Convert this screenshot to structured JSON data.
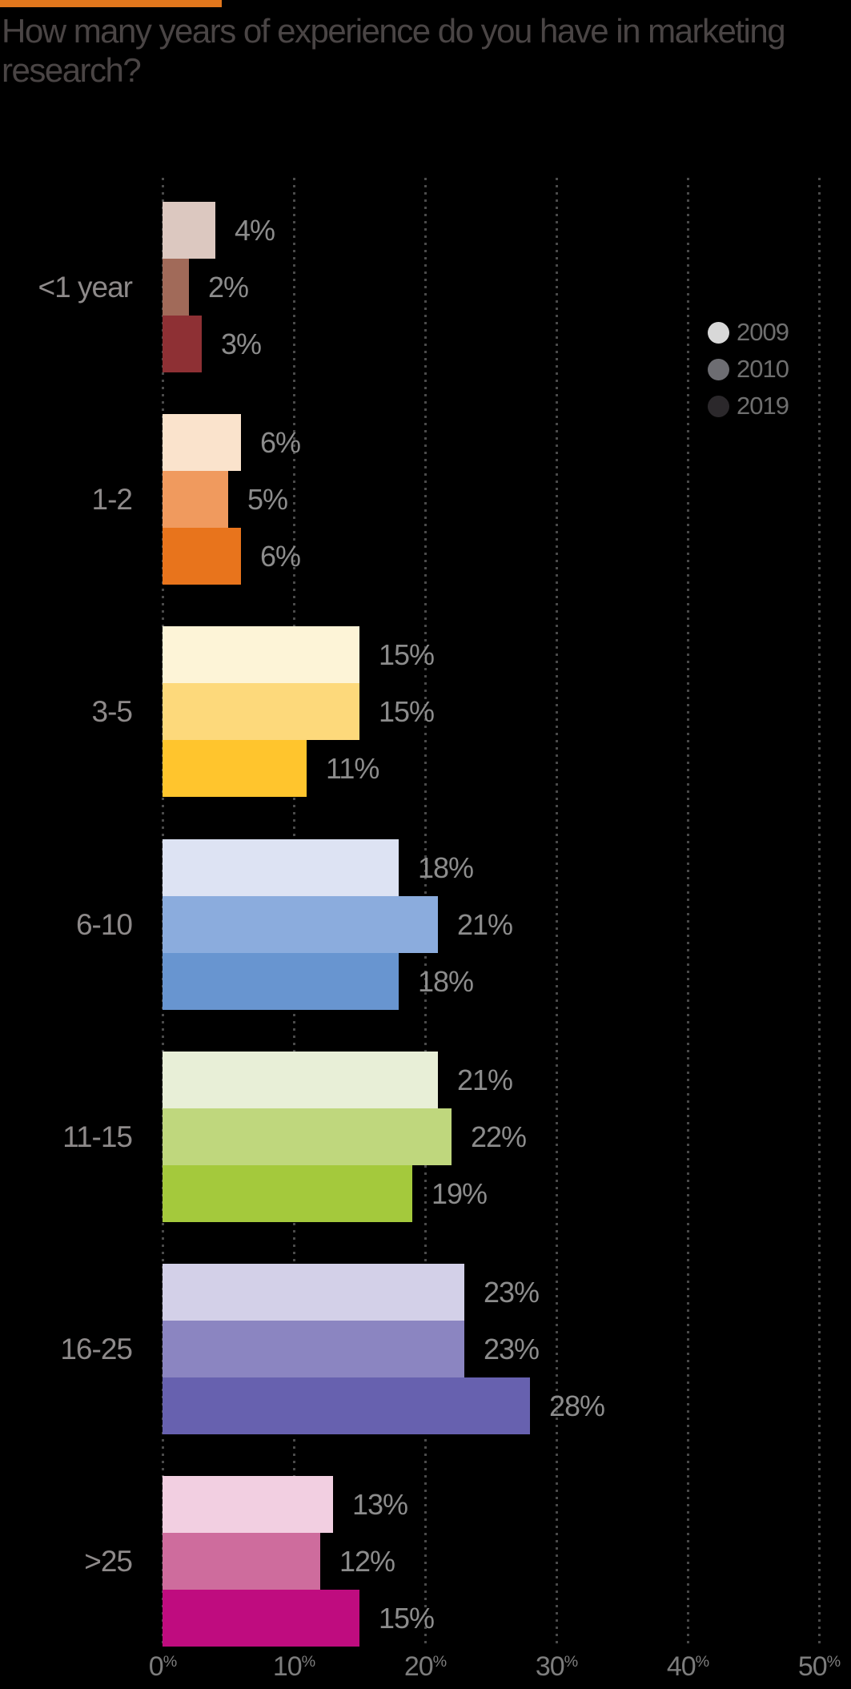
{
  "header": {
    "accent_color": "#e2771d",
    "title_line1": "How many years of experience do you have in marketing",
    "title_line2": "research?"
  },
  "legend": {
    "position": "right-top",
    "items": [
      {
        "label": "2009",
        "color": "#d8d8d8"
      },
      {
        "label": "2010",
        "color": "#6d6d72"
      },
      {
        "label": "2019",
        "color": "#2b282b"
      }
    ]
  },
  "chart_data": {
    "type": "bar",
    "orientation": "horizontal",
    "title": "How many years of experience do you have in marketing research?",
    "xlabel": "",
    "ylabel": "",
    "xlim": [
      0,
      50
    ],
    "grid": "dotted-vertical",
    "x_tick_labels": [
      "0%",
      "10%",
      "20%",
      "30%",
      "40%",
      "50%"
    ],
    "x_tick_values": [
      0,
      10,
      20,
      30,
      40,
      50
    ],
    "series_names": [
      "2009",
      "2010",
      "2019"
    ],
    "categories": [
      "<1 year",
      "1-2",
      "3-5",
      "6-10",
      "11-15",
      "16-25",
      ">25"
    ],
    "groups": [
      {
        "category": "<1 year",
        "values": [
          4,
          2,
          3
        ],
        "labels": [
          "4%",
          "2%",
          "3%"
        ],
        "colors": [
          "#dcc8c0",
          "#a16a59",
          "#8e3034"
        ]
      },
      {
        "category": "1-2",
        "values": [
          6,
          5,
          6
        ],
        "labels": [
          "6%",
          "5%",
          "6%"
        ],
        "colors": [
          "#fae3cc",
          "#f09a5e",
          "#e8741c"
        ]
      },
      {
        "category": "3-5",
        "values": [
          15,
          15,
          11
        ],
        "labels": [
          "15%",
          "15%",
          "11%"
        ],
        "colors": [
          "#fdf4d7",
          "#fdd97b",
          "#ffc52d"
        ]
      },
      {
        "category": "6-10",
        "values": [
          18,
          21,
          18
        ],
        "labels": [
          "18%",
          "21%",
          "18%"
        ],
        "colors": [
          "#dde3f3",
          "#8bacdd",
          "#6895d0"
        ]
      },
      {
        "category": "11-15",
        "values": [
          21,
          22,
          19
        ],
        "labels": [
          "21%",
          "22%",
          "19%"
        ],
        "colors": [
          "#e8efd7",
          "#bfd77d",
          "#a4c93c"
        ]
      },
      {
        "category": "16-25",
        "values": [
          23,
          23,
          28
        ],
        "labels": [
          "23%",
          "23%",
          "28%"
        ],
        "colors": [
          "#d3d0e8",
          "#8b85c1",
          "#6761af"
        ]
      },
      {
        "category": ">25",
        "values": [
          13,
          12,
          15
        ],
        "labels": [
          "13%",
          "12%",
          "15%"
        ],
        "colors": [
          "#f2cfe1",
          "#ce6c9d",
          "#bf0c7f"
        ]
      }
    ]
  }
}
